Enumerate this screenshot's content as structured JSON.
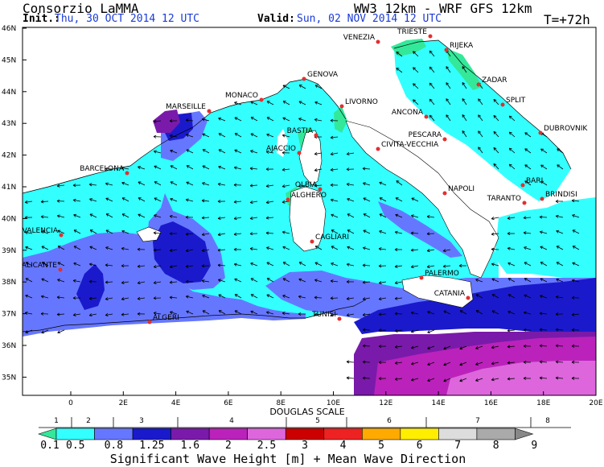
{
  "header": {
    "org": "Consorzio LaMMA",
    "model": "WW3 12km - WRF GFS 12km",
    "init_label": "Init.:",
    "init_value": "Thu, 30 OCT 2014  12 UTC",
    "valid_label": "Valid:",
    "valid_value": "Sun, 02 NOV 2014  12 UTC",
    "forecast_step": "T=+72h"
  },
  "map": {
    "lat_labels": [
      "46N",
      "45N",
      "44N",
      "43N",
      "42N",
      "41N",
      "40N",
      "39N",
      "38N",
      "37N",
      "36N",
      "35N"
    ],
    "lon_labels": [
      "0",
      "2E",
      "4E",
      "6E",
      "8E",
      "10E",
      "12E",
      "14E",
      "16E",
      "18E",
      "20E"
    ],
    "cities": [
      "VENEZIA",
      "TRIESTE",
      "RIJEKA",
      "ZADAR",
      "SPLIT",
      "DUBROVNIK",
      "GENOVA",
      "MONACO",
      "MARSEILLE",
      "LIVORNO",
      "ANCONA",
      "PESCARA",
      "CIVITA-VECCHIA",
      "BASTIA",
      "AJACCIO",
      "BARCELONA",
      "OLBIA",
      "ALGHERO",
      "NAPOLI",
      "BARI",
      "BRINDISI",
      "TARANTO",
      "VALENCIA",
      "CAGLIARI",
      "ALICANTE",
      "PALERMO",
      "CATANIA",
      "TUNISI",
      "ALGERI"
    ]
  },
  "legend": {
    "douglas_title": "DOUGLAS SCALE",
    "douglas_numbers": [
      "1",
      "2",
      "3",
      "4",
      "5",
      "6",
      "7",
      "8"
    ],
    "height_values": [
      "0.1",
      "0.5",
      "0.8",
      "1.25",
      "1.6",
      "2",
      "2.5",
      "3",
      "4",
      "5",
      "6",
      "7",
      "8",
      "9"
    ],
    "colors": [
      "#33e899",
      "#33ffff",
      "#6677ff",
      "#1a1acc",
      "#7a1aaa",
      "#bb22bb",
      "#dd66dd",
      "#cc0000",
      "#ee2222",
      "#ffaa00",
      "#ffee00",
      "#dddddd",
      "#aaaaaa",
      "#888888"
    ],
    "title": "Significant Wave Height [m] + Mean Wave Direction"
  }
}
